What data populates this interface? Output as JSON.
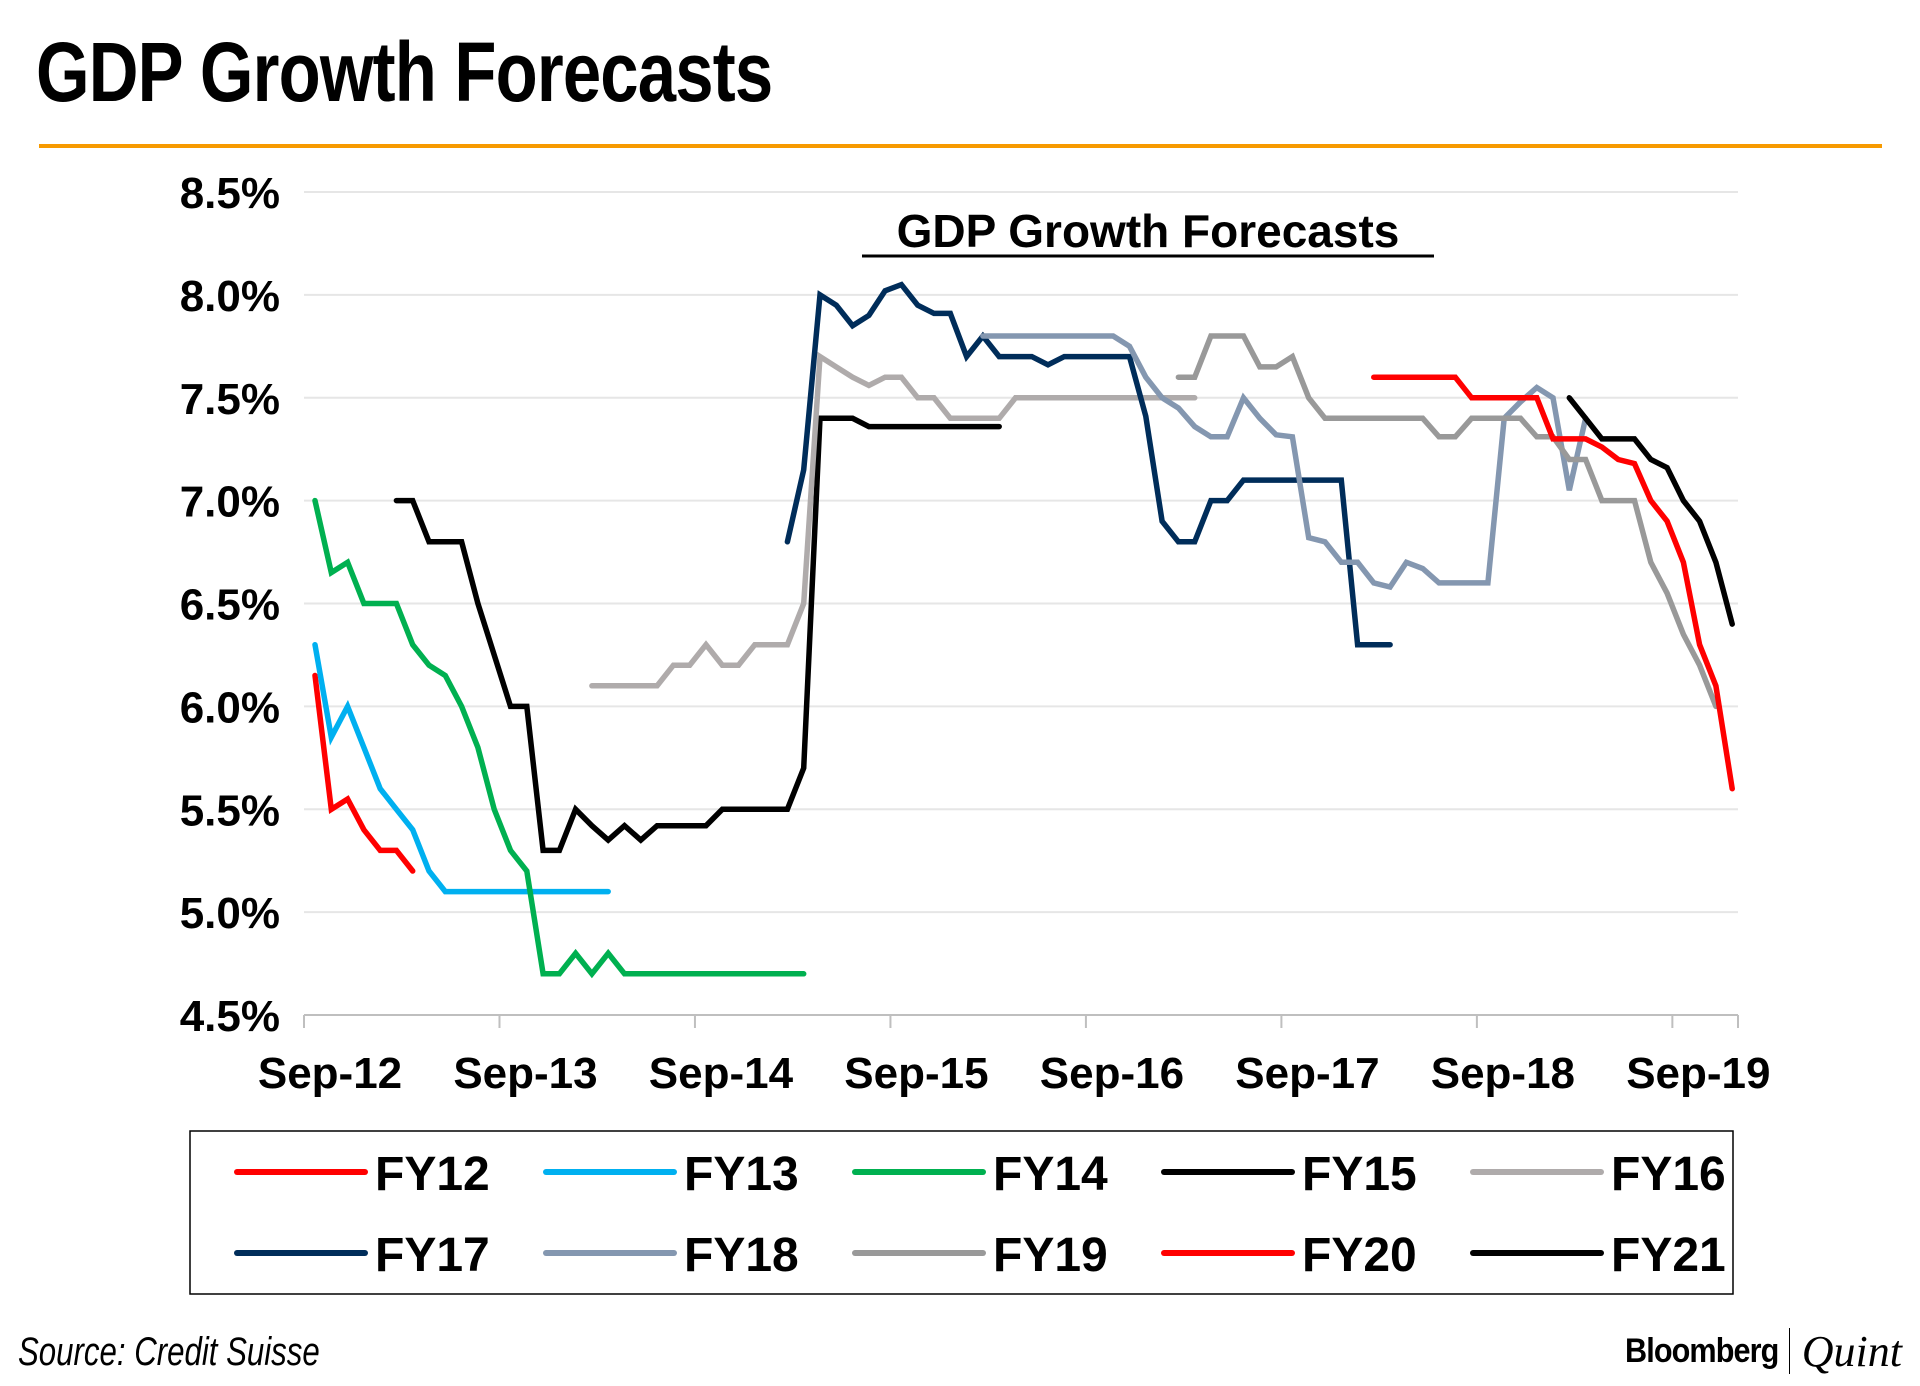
{
  "header": {
    "title": "GDP Growth Forecasts"
  },
  "footer": {
    "source": "Source: Credit Suisse",
    "brand_primary": "Bloomberg",
    "brand_secondary": "Quint"
  },
  "colors": {
    "accent_rule": "#F79A00",
    "gridline": "#E6E6E6",
    "axis": "#BFBFBF"
  },
  "chart_data": {
    "type": "line",
    "title": "GDP Growth Forecasts",
    "xlabel": "",
    "ylabel": "",
    "x_unit": "month index from Sep-12 (0 = Sep-12)",
    "x_range_months": [
      0,
      88
    ],
    "ylim": [
      4.5,
      8.5
    ],
    "y_ticks": [
      4.5,
      5.0,
      5.5,
      6.0,
      6.5,
      7.0,
      7.5,
      8.0,
      8.5
    ],
    "y_tick_labels": [
      "4.5%",
      "5.0%",
      "5.5%",
      "6.0%",
      "6.5%",
      "7.0%",
      "7.5%",
      "8.0%",
      "8.5%"
    ],
    "x_ticks_months": [
      0,
      12,
      24,
      36,
      48,
      60,
      72,
      84
    ],
    "x_tick_labels": [
      "Sep-12",
      "Sep-13",
      "Sep-14",
      "Sep-15",
      "Sep-16",
      "Sep-17",
      "Sep-18",
      "Sep-19"
    ],
    "grid": true,
    "legend_position": "bottom",
    "legend_columns": 5,
    "series": [
      {
        "name": "FY12",
        "color": "#FF0000",
        "start": 0,
        "values": [
          6.15,
          5.5,
          5.55,
          5.4,
          5.3,
          5.3,
          5.2
        ]
      },
      {
        "name": "FY13",
        "color": "#00B0F0",
        "start": 0,
        "values": [
          6.3,
          5.85,
          6.0,
          5.8,
          5.6,
          5.5,
          5.4,
          5.2,
          5.1,
          5.1,
          5.1,
          5.1,
          5.1,
          5.1,
          5.1,
          5.1,
          5.1,
          5.1,
          5.1
        ]
      },
      {
        "name": "FY14",
        "color": "#00B050",
        "start": 0,
        "values": [
          7.0,
          6.65,
          6.7,
          6.5,
          6.5,
          6.5,
          6.3,
          6.2,
          6.15,
          6.0,
          5.8,
          5.5,
          5.3,
          5.2,
          4.7,
          4.7,
          4.8,
          4.7,
          4.8,
          4.7,
          4.7,
          4.7,
          4.7,
          4.7,
          4.7,
          4.7,
          4.7,
          4.7,
          4.7,
          4.7,
          4.7
        ]
      },
      {
        "name": "FY15",
        "color": "#000000",
        "start": 5,
        "values": [
          7.0,
          7.0,
          6.8,
          6.8,
          6.8,
          6.5,
          6.25,
          6.0,
          6.0,
          5.3,
          5.3,
          5.5,
          5.42,
          5.35,
          5.42,
          5.35,
          5.42,
          5.42,
          5.42,
          5.42,
          5.5,
          5.5,
          5.5,
          5.5,
          5.5,
          5.7,
          7.4,
          7.4,
          7.4,
          7.36,
          7.36,
          7.36,
          7.36,
          7.36,
          7.36,
          7.36,
          7.36,
          7.36
        ]
      },
      {
        "name": "FY16",
        "color": "#AFABAB",
        "start": 17,
        "values": [
          6.1,
          6.1,
          6.1,
          6.1,
          6.1,
          6.2,
          6.2,
          6.3,
          6.2,
          6.2,
          6.3,
          6.3,
          6.3,
          6.5,
          7.7,
          7.65,
          7.6,
          7.56,
          7.6,
          7.6,
          7.5,
          7.5,
          7.4,
          7.4,
          7.4,
          7.4,
          7.5,
          7.5,
          7.5,
          7.5,
          7.5,
          7.5,
          7.5,
          7.5,
          7.5,
          7.5,
          7.5,
          7.5
        ]
      },
      {
        "name": "FY17",
        "color": "#002D5A",
        "start": 29,
        "values": [
          6.8,
          7.15,
          8.0,
          7.95,
          7.85,
          7.9,
          8.02,
          8.05,
          7.95,
          7.91,
          7.91,
          7.7,
          7.8,
          7.7,
          7.7,
          7.7,
          7.66,
          7.7,
          7.7,
          7.7,
          7.7,
          7.7,
          7.41,
          6.9,
          6.8,
          6.8,
          7.0,
          7.0,
          7.1,
          7.1,
          7.1,
          7.1,
          7.1,
          7.1,
          7.1,
          6.3,
          6.3,
          6.3
        ]
      },
      {
        "name": "FY18",
        "color": "#8497B0",
        "start": 41,
        "values": [
          7.8,
          7.8,
          7.8,
          7.8,
          7.8,
          7.8,
          7.8,
          7.8,
          7.8,
          7.75,
          7.6,
          7.5,
          7.45,
          7.36,
          7.31,
          7.31,
          7.5,
          7.4,
          7.32,
          7.31,
          6.82,
          6.8,
          6.7,
          6.7,
          6.6,
          6.58,
          6.7,
          6.67,
          6.6,
          6.6,
          6.6,
          6.6,
          7.4,
          7.48,
          7.55,
          7.5,
          7.05,
          7.4
        ]
      },
      {
        "name": "FY19",
        "color": "#999999",
        "start": 53,
        "values": [
          7.6,
          7.6,
          7.8,
          7.8,
          7.8,
          7.65,
          7.65,
          7.7,
          7.5,
          7.4,
          7.4,
          7.4,
          7.4,
          7.4,
          7.4,
          7.4,
          7.31,
          7.31,
          7.4,
          7.4,
          7.4,
          7.4,
          7.31,
          7.31,
          7.2,
          7.2,
          7.0,
          7.0,
          7.0,
          6.7,
          6.55,
          6.35,
          6.2,
          6.0
        ]
      },
      {
        "name": "FY20",
        "color": "#FF0000",
        "start": 65,
        "values": [
          7.6,
          7.6,
          7.6,
          7.6,
          7.6,
          7.6,
          7.5,
          7.5,
          7.5,
          7.5,
          7.5,
          7.3,
          7.3,
          7.3,
          7.26,
          7.2,
          7.18,
          7.0,
          6.9,
          6.7,
          6.3,
          6.1,
          5.6
        ]
      },
      {
        "name": "FY21",
        "color": "#000000",
        "start": 77,
        "values": [
          7.5,
          7.4,
          7.3,
          7.3,
          7.3,
          7.2,
          7.16,
          7.0,
          6.9,
          6.7,
          6.4
        ]
      }
    ]
  }
}
